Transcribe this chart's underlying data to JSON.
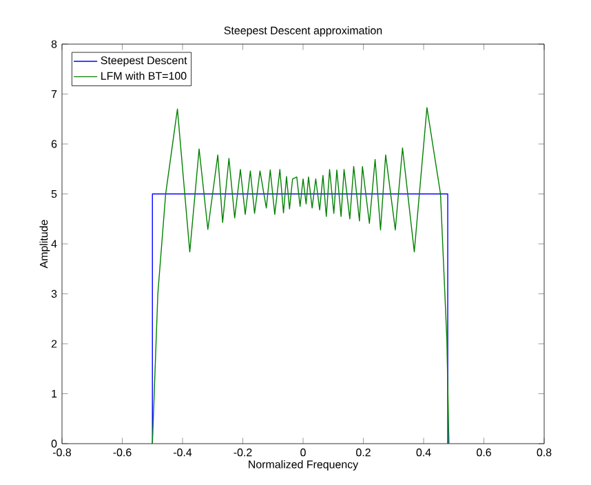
{
  "chart_data": {
    "type": "line",
    "title": "Steepest Descent approximation",
    "xlabel": "Normalized Frequency",
    "ylabel": "Amplitude",
    "xlim": [
      -0.8,
      0.8
    ],
    "ylim": [
      0,
      8
    ],
    "xticks": [
      -0.8,
      -0.6,
      -0.4,
      -0.2,
      0,
      0.2,
      0.4,
      0.6,
      0.8
    ],
    "yticks": [
      0,
      1,
      2,
      3,
      4,
      5,
      6,
      7,
      8
    ],
    "legend": "top left",
    "grid": false,
    "line_style": "solid",
    "marker": "none",
    "series": [
      {
        "name": "Steepest Descent",
        "color": "#0000ff",
        "x": [
          -0.5,
          -0.5,
          0.48,
          0.48
        ],
        "values": [
          0,
          5,
          5,
          0
        ]
      },
      {
        "name": "LFM with BT=100",
        "color": "#008000",
        "x": [
          -0.5,
          -0.482,
          -0.456,
          -0.417,
          -0.376,
          -0.345,
          -0.316,
          -0.283,
          -0.267,
          -0.246,
          -0.227,
          -0.208,
          -0.192,
          -0.175,
          -0.161,
          -0.143,
          -0.122,
          -0.109,
          -0.094,
          -0.077,
          -0.065,
          -0.055,
          -0.045,
          -0.035,
          -0.021,
          -0.01,
          0.0,
          0.01,
          0.018,
          0.03,
          0.042,
          0.055,
          0.066,
          0.077,
          0.088,
          0.102,
          0.112,
          0.126,
          0.136,
          0.155,
          0.168,
          0.187,
          0.197,
          0.22,
          0.239,
          0.257,
          0.274,
          0.306,
          0.33,
          0.369,
          0.411,
          0.456,
          0.477,
          0.484
        ],
        "values": [
          0,
          3.0,
          5.0,
          6.7,
          3.84,
          5.9,
          4.29,
          5.78,
          4.43,
          5.71,
          4.52,
          5.49,
          4.59,
          5.46,
          4.61,
          5.46,
          4.72,
          5.48,
          4.59,
          5.49,
          4.62,
          5.35,
          4.7,
          5.3,
          5.34,
          4.75,
          5.3,
          4.8,
          5.34,
          4.72,
          5.3,
          4.68,
          5.37,
          4.55,
          5.49,
          4.61,
          5.48,
          4.55,
          5.49,
          4.5,
          5.55,
          4.46,
          5.55,
          4.41,
          5.69,
          4.28,
          5.78,
          4.28,
          5.92,
          3.84,
          6.73,
          5.0,
          2.1,
          0
        ]
      }
    ]
  }
}
